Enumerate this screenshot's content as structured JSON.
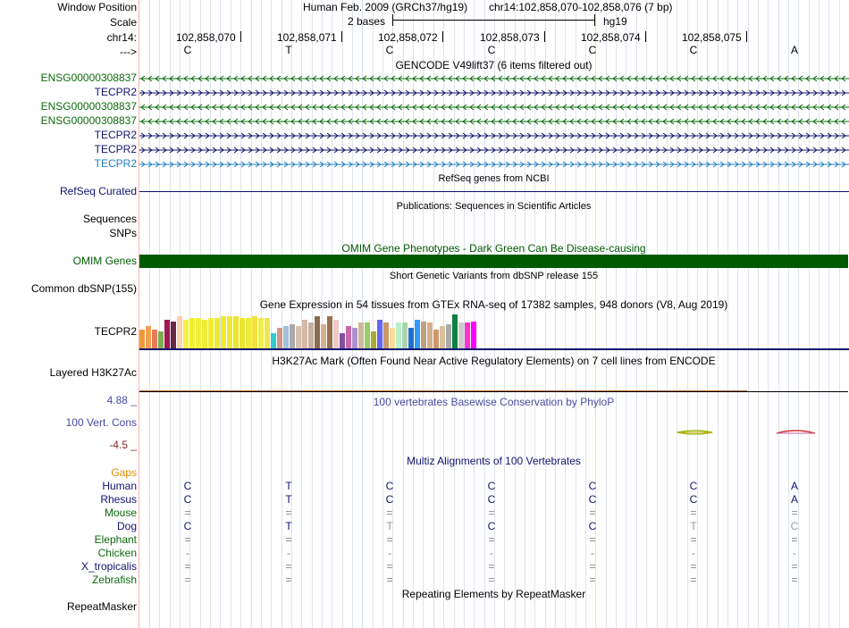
{
  "header": {
    "assembly": "Human Feb. 2009 (GRCh37/hg19)",
    "position": "chr14:102,858,070-102,858,076 (7 bp)",
    "scale_text": "2 bases",
    "scale_db": "hg19",
    "strand_arrow": "--->",
    "chrom_label": "chr14:",
    "ticks": [
      "102,858,070",
      "102,858,071",
      "102,858,072",
      "102,858,073",
      "102,858,074",
      "102,858,075"
    ],
    "bases": [
      "C",
      "T",
      "C",
      "C",
      "C",
      "C",
      "A"
    ]
  },
  "labels": {
    "window_position": "Window Position",
    "scale": "Scale",
    "chrom": "chr14:",
    "arrow": "--->",
    "gencode": [
      "ENSG00000308837",
      "TECPR2",
      "ENSG00000308837",
      "ENSG00000308837",
      "TECPR2",
      "TECPR2",
      "TECPR2"
    ],
    "refseq": "RefSeq Curated",
    "sequences": "Sequences",
    "snps": "SNPs",
    "omim": "OMIM Genes",
    "dbsnp": "Common dbSNP(155)",
    "gtex": "TECPR2",
    "h3k27ac": "Layered H3K27Ac",
    "cons_max": "4.88 _",
    "cons": "100 Vert. Cons",
    "cons_min": "-4.5 _",
    "gaps": "Gaps",
    "species": [
      "Human",
      "Rhesus",
      "Mouse",
      "Dog",
      "Elephant",
      "Chicken",
      "X_tropicalis",
      "Zebrafish"
    ],
    "repeatmasker": "RepeatMasker"
  },
  "tracks": {
    "gencode_title": "GENCODE V49lift37 (6 items filtered out)",
    "refseq_title": "RefSeq genes from NCBI",
    "pubs_title": "Publications: Sequences in Scientific Articles",
    "omim_title": "OMIM Gene Phenotypes - Dark Green Can Be Disease-causing",
    "dbsnp_title": "Short Genetic Variants from dbSNP release 155",
    "gtex_title": "Gene Expression in 54 tissues from GTEx RNA-seq of 17382 samples, 948 donors (V8, Aug 2019)",
    "h3k27ac_title": "H3K27Ac Mark (Often Found Near Active Regulatory Elements) on 7 cell lines from ENCODE",
    "cons_title": "100 vertebrates Basewise Conservation by PhyloP",
    "multiz_title": "Multiz Alignments of 100 Vertebrates",
    "repeat_title": "Repeating Elements by RepeatMasker"
  },
  "colors": {
    "gencode_green": "#0b6b0b",
    "navy": "#12126e",
    "teal_blue": "#1f7ec0",
    "omim_green": "#005a00",
    "orange": "#e08c00",
    "cons_blue": "#4a4aa0",
    "cons_red": "#8b2222"
  },
  "alignment": [
    [
      "C",
      "T",
      "C",
      "C",
      "C",
      "C",
      "A"
    ],
    [
      "C",
      "T",
      "C",
      "C",
      "C",
      "C",
      "A"
    ],
    [
      "=",
      "=",
      "=",
      "=",
      "=",
      "=",
      "="
    ],
    [
      "C",
      "T",
      "T",
      "C",
      "C",
      "T",
      "C"
    ],
    [
      "=",
      "=",
      "=",
      "=",
      "=",
      "=",
      "="
    ],
    [
      "-",
      "-",
      "-",
      "-",
      "-",
      "-",
      "-"
    ],
    [
      "=",
      "=",
      "=",
      "=",
      "=",
      "=",
      "="
    ],
    [
      "=",
      "=",
      "=",
      "=",
      "=",
      "=",
      "="
    ]
  ],
  "gtex_values": [
    0.55,
    0.65,
    0.55,
    0.5,
    0.85,
    0.8,
    0.95,
    0.85,
    0.9,
    0.9,
    0.85,
    0.9,
    0.9,
    0.95,
    0.95,
    0.95,
    0.9,
    0.9,
    0.95,
    0.9,
    0.9,
    0.45,
    0.6,
    0.65,
    0.7,
    0.65,
    0.85,
    0.75,
    0.95,
    0.7,
    0.95,
    0.85,
    0.45,
    0.65,
    0.6,
    0.75,
    0.75,
    0.5,
    0.85,
    0.75,
    0.6,
    0.75,
    0.75,
    0.6,
    0.85,
    0.8,
    0.75,
    0.55,
    0.65,
    0.7,
    1,
    0.75,
    0.75,
    0.8
  ]
}
